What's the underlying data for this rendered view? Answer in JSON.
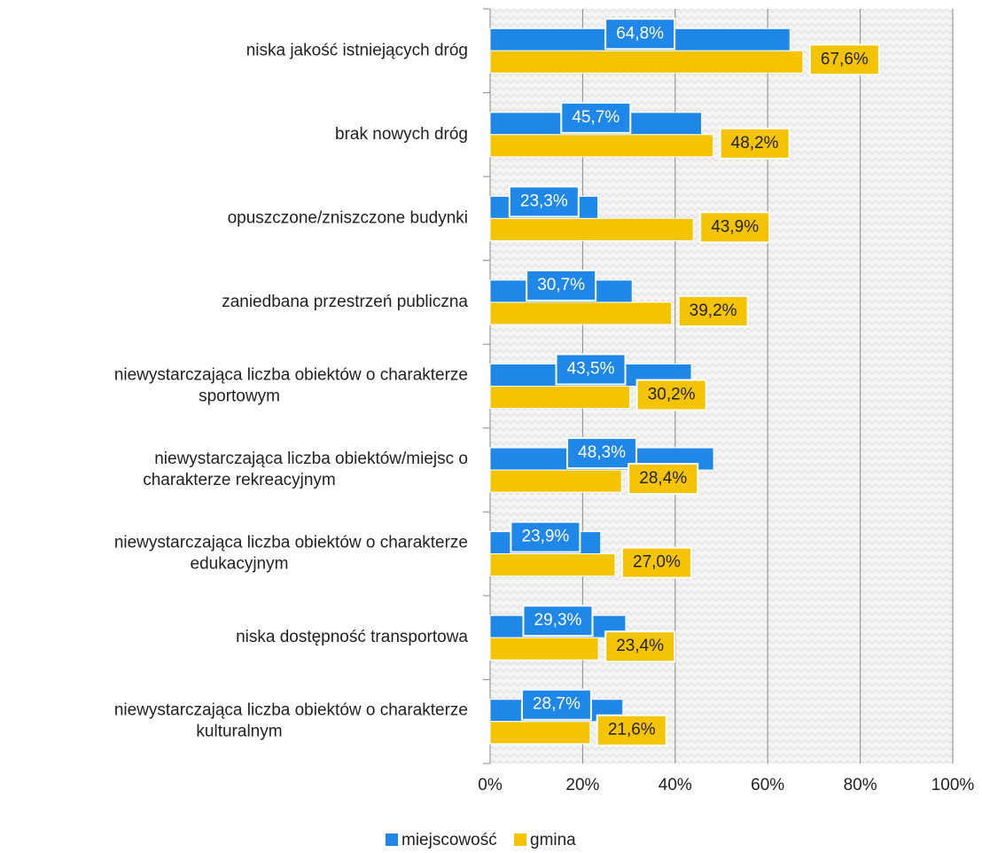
{
  "chart_data": {
    "type": "barh",
    "categories": [
      "niska jakość istniejących dróg",
      "brak nowych dróg",
      "opuszczone/zniszczone budynki",
      "zaniedbana przestrzeń  publiczna",
      "niewystarczająca liczba obiektów o charakterze\nsportowym",
      "niewystarczająca liczba obiektów/miejsc o\ncharakterze rekreacyjnym",
      "niewystarczająca liczba obiektów o charakterze\nedukacyjnym",
      "niska dostępność transportowa",
      "niewystarczająca liczba obiektów o charakterze\nkulturalnym"
    ],
    "series": [
      {
        "name": "miejscowość",
        "color": "#1f87e8",
        "values": [
          64.8,
          45.7,
          23.3,
          30.7,
          43.5,
          48.3,
          23.9,
          29.3,
          28.7
        ],
        "value_labels": [
          "64,8%",
          "45,7%",
          "23,3%",
          "30,7%",
          "43,5%",
          "48,3%",
          "23,9%",
          "29,3%",
          "28,7%"
        ]
      },
      {
        "name": "gmina",
        "color": "#f5c400",
        "values": [
          67.6,
          48.2,
          43.9,
          39.2,
          30.2,
          28.4,
          27.0,
          23.4,
          21.6
        ],
        "value_labels": [
          "67,6%",
          "48,2%",
          "43,9%",
          "39,2%",
          "30,2%",
          "28,4%",
          "27,0%",
          "23,4%",
          "21,6%"
        ]
      }
    ],
    "xlim": [
      0,
      100
    ],
    "xticks": [
      {
        "value": 0,
        "label": "0%"
      },
      {
        "value": 20,
        "label": "20%"
      },
      {
        "value": 40,
        "label": "40%"
      },
      {
        "value": 60,
        "label": "60%"
      },
      {
        "value": 80,
        "label": "80%"
      },
      {
        "value": 100,
        "label": "100%"
      }
    ],
    "grid": true,
    "legend": "bottom"
  }
}
